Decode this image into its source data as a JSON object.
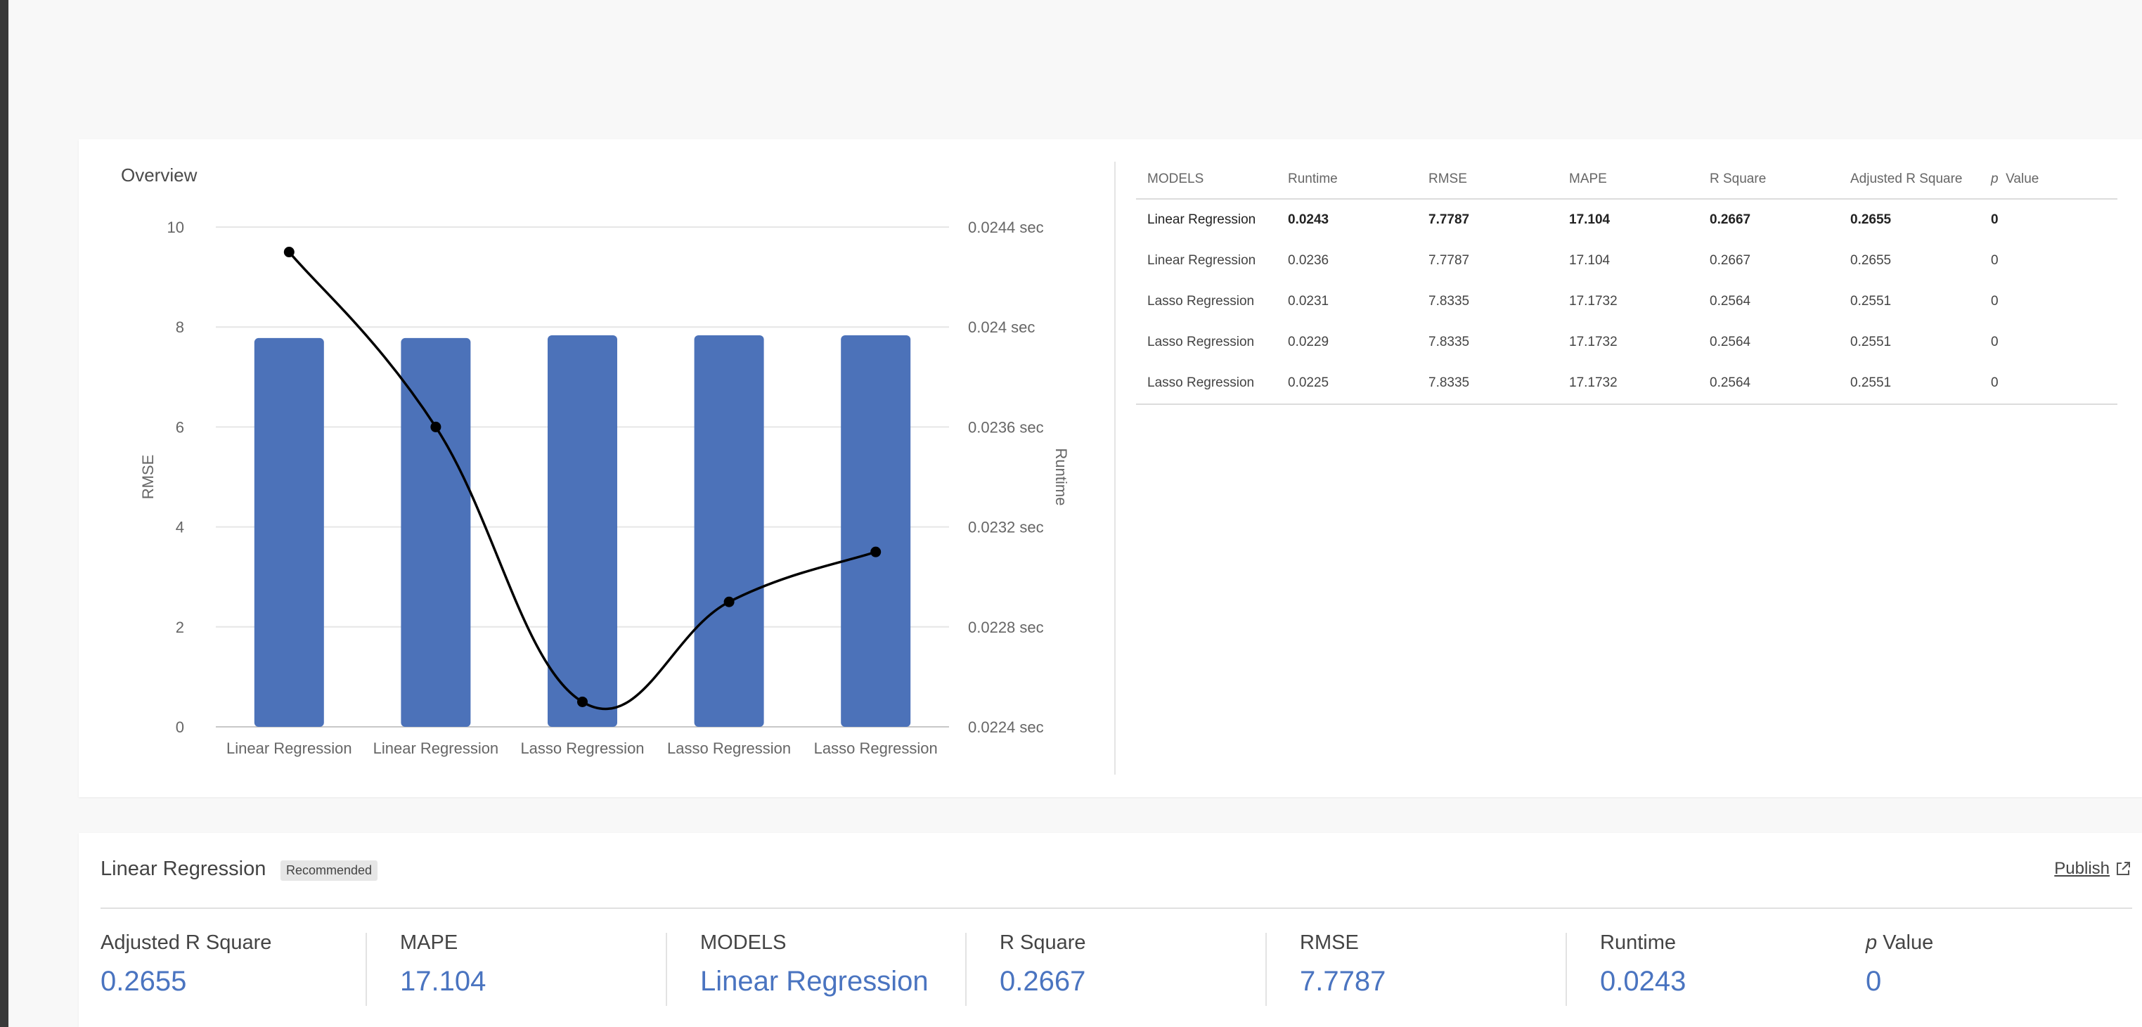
{
  "overview": {
    "title": "Overview",
    "table": {
      "headers": [
        "MODELS",
        "Runtime",
        "RMSE",
        "MAPE",
        "R Square",
        "Adjusted R Square",
        "p",
        "Value"
      ],
      "rows": [
        [
          "Linear Regression",
          "0.0243",
          "7.7787",
          "17.104",
          "0.2667",
          "0.2655",
          "0"
        ],
        [
          "Linear Regression",
          "0.0236",
          "7.7787",
          "17.104",
          "0.2667",
          "0.2655",
          "0"
        ],
        [
          "Lasso Regression",
          "0.0231",
          "7.8335",
          "17.1732",
          "0.2564",
          "0.2551",
          "0"
        ],
        [
          "Lasso Regression",
          "0.0229",
          "7.8335",
          "17.1732",
          "0.2564",
          "0.2551",
          "0"
        ],
        [
          "Lasso Regression",
          "0.0225",
          "7.8335",
          "17.1732",
          "0.2564",
          "0.2551",
          "0"
        ]
      ]
    }
  },
  "chart_data": {
    "type": "bar",
    "categories": [
      "Linear Regression",
      "Linear Regression",
      "Lasso Regression",
      "Lasso Regression",
      "Lasso Regression"
    ],
    "series": [
      {
        "name": "RMSE",
        "type": "bar",
        "axis": "left",
        "values": [
          7.7787,
          7.7787,
          7.8335,
          7.8335,
          7.8335
        ]
      },
      {
        "name": "Runtime",
        "type": "line",
        "axis": "right",
        "values": [
          0.0243,
          0.0236,
          0.0225,
          0.0229,
          0.0231
        ]
      }
    ],
    "ylabel": "RMSE",
    "y2label": "Runtime",
    "ylim": [
      0,
      10
    ],
    "y2lim": [
      0.0224,
      0.0244
    ],
    "yticks": [
      "0",
      "2",
      "4",
      "6",
      "8",
      "10"
    ],
    "y2ticks": [
      "0.0224 sec",
      "0.0228 sec",
      "0.0232 sec",
      "0.0236 sec",
      "0.024 sec",
      "0.0244 sec"
    ],
    "grid": true,
    "colors": {
      "bar": "#4c72b9",
      "line": "#000000"
    }
  },
  "detail": {
    "title": "Linear Regression",
    "badge": "Recommended",
    "publish_label": "Publish",
    "metrics": [
      {
        "label": "Adjusted R Square",
        "value": "0.2655"
      },
      {
        "label": "MAPE",
        "value": "17.104"
      },
      {
        "label": "MODELS",
        "value": "Linear Regression"
      },
      {
        "label": "R Square",
        "value": "0.2667"
      },
      {
        "label": "RMSE",
        "value": "7.7787"
      },
      {
        "label": "Runtime",
        "value": "0.0243"
      }
    ],
    "pvalue_label_p": "p",
    "pvalue_label_rest": "Value",
    "pvalue_value": "0"
  }
}
